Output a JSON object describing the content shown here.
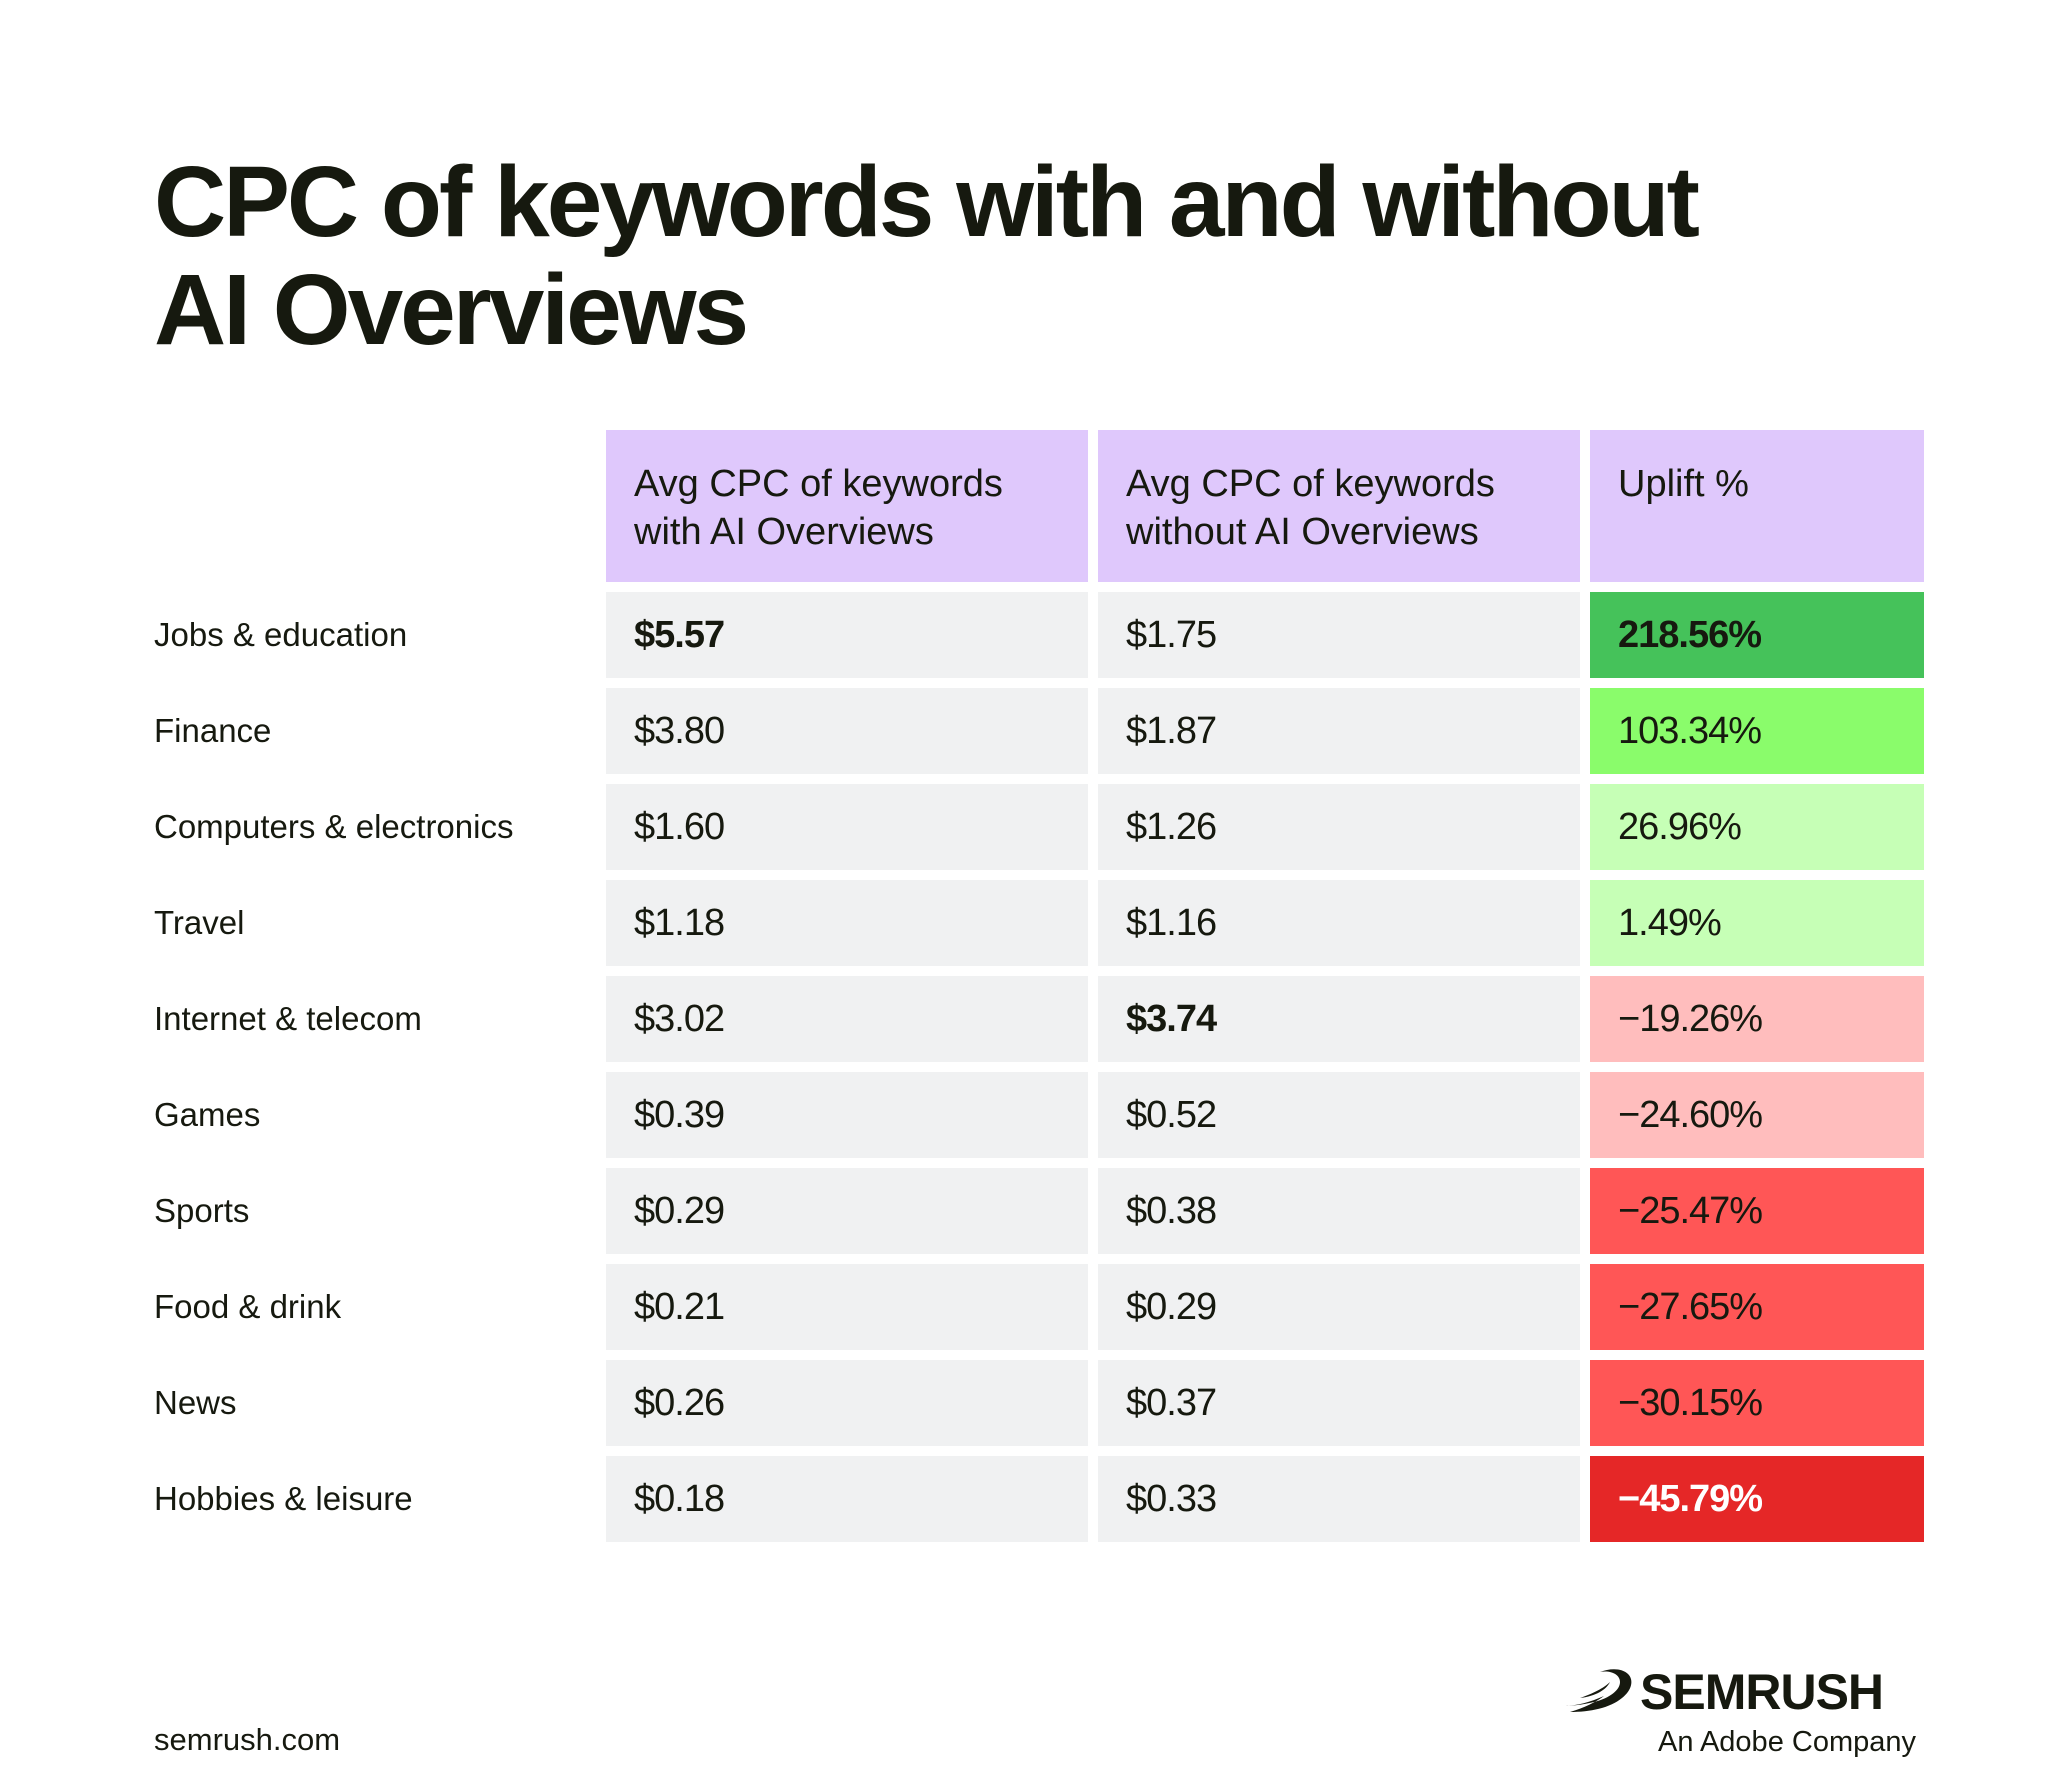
{
  "title": {
    "line1": "CPC of keywords with and without",
    "line2": "AI Overviews"
  },
  "chart_data": {
    "type": "table",
    "columns": [
      {
        "line1": "Avg CPC of keywords",
        "line2": "with AI Overviews"
      },
      {
        "line1": "Avg CPC of keywords",
        "line2": "without AI Overviews"
      },
      {
        "line1": "Uplift %",
        "line2": ""
      }
    ],
    "rows": [
      {
        "category": "Jobs & education",
        "with_ai": "$5.57",
        "without_ai": "$1.75",
        "uplift": "218.56%",
        "uplift_value": 218.56,
        "bold_with": true,
        "bold_without": false,
        "uplift_bold": true,
        "uplift_color": "#45c25a",
        "uplift_text_color": "#16190f"
      },
      {
        "category": "Finance",
        "with_ai": "$3.80",
        "without_ai": "$1.87",
        "uplift": "103.34%",
        "uplift_value": 103.34,
        "bold_with": false,
        "bold_without": false,
        "uplift_bold": false,
        "uplift_color": "#8afc6b",
        "uplift_text_color": "#16190f"
      },
      {
        "category": "Computers & electronics",
        "with_ai": "$1.60",
        "without_ai": "$1.26",
        "uplift": "26.96%",
        "uplift_value": 26.96,
        "bold_with": false,
        "bold_without": false,
        "uplift_bold": false,
        "uplift_color": "#c6ffb6",
        "uplift_text_color": "#16190f"
      },
      {
        "category": "Travel",
        "with_ai": "$1.18",
        "without_ai": "$1.16",
        "uplift": "1.49%",
        "uplift_value": 1.49,
        "bold_with": false,
        "bold_without": false,
        "uplift_bold": false,
        "uplift_color": "#c6ffb6",
        "uplift_text_color": "#16190f"
      },
      {
        "category": "Internet & telecom",
        "with_ai": "$3.02",
        "without_ai": "$3.74",
        "uplift": "−19.26%",
        "uplift_value": -19.26,
        "bold_with": false,
        "bold_without": true,
        "uplift_bold": false,
        "uplift_color": "#ffbdbd",
        "uplift_text_color": "#16190f"
      },
      {
        "category": "Games",
        "with_ai": "$0.39",
        "without_ai": "$0.52",
        "uplift": "−24.60%",
        "uplift_value": -24.6,
        "bold_with": false,
        "bold_without": false,
        "uplift_bold": false,
        "uplift_color": "#ffbdbd",
        "uplift_text_color": "#16190f"
      },
      {
        "category": "Sports",
        "with_ai": "$0.29",
        "without_ai": "$0.38",
        "uplift": "−25.47%",
        "uplift_value": -25.47,
        "bold_with": false,
        "bold_without": false,
        "uplift_bold": false,
        "uplift_color": "#ff5656",
        "uplift_text_color": "#16190f"
      },
      {
        "category": "Food & drink",
        "with_ai": "$0.21",
        "without_ai": "$0.29",
        "uplift": "−27.65%",
        "uplift_value": -27.65,
        "bold_with": false,
        "bold_without": false,
        "uplift_bold": false,
        "uplift_color": "#ff5656",
        "uplift_text_color": "#16190f"
      },
      {
        "category": "News",
        "with_ai": "$0.26",
        "without_ai": "$0.37",
        "uplift": "−30.15%",
        "uplift_value": -30.15,
        "bold_with": false,
        "bold_without": false,
        "uplift_bold": false,
        "uplift_color": "#ff5656",
        "uplift_text_color": "#16190f"
      },
      {
        "category": "Hobbies & leisure",
        "with_ai": "$0.18",
        "without_ai": "$0.33",
        "uplift": "−45.79%",
        "uplift_value": -45.79,
        "bold_with": false,
        "bold_without": false,
        "uplift_bold": true,
        "uplift_color": "#e52727",
        "uplift_text_color": "#ffffff"
      }
    ],
    "header_color": "#dfc8fc",
    "cell_color": "#f0f1f2"
  },
  "footer": {
    "url": "semrush.com",
    "brand": "SEMRUSH",
    "tagline": "An Adobe Company",
    "logo_icon": "semrush-fireball-icon"
  }
}
